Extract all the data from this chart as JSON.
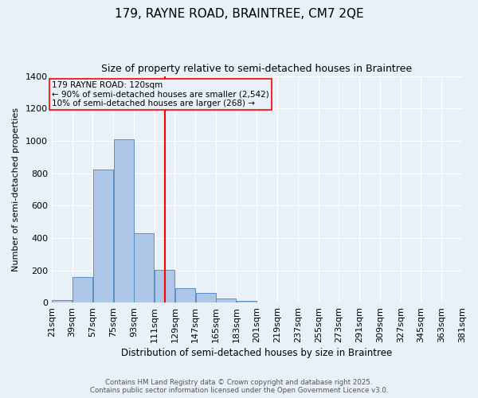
{
  "title1": "179, RAYNE ROAD, BRAINTREE, CM7 2QE",
  "title2": "Size of property relative to semi-detached houses in Braintree",
  "xlabel": "Distribution of semi-detached houses by size in Braintree",
  "ylabel": "Number of semi-detached properties",
  "bin_edges": [
    21,
    39,
    57,
    75,
    93,
    111,
    129,
    147,
    165,
    183,
    201,
    219,
    237,
    255,
    273,
    291,
    309,
    327,
    345,
    363,
    381
  ],
  "bar_heights": [
    15,
    160,
    820,
    1010,
    430,
    205,
    90,
    60,
    25,
    10,
    0,
    0,
    0,
    0,
    0,
    0,
    0,
    0,
    0,
    0
  ],
  "bar_color": "#aec6e8",
  "bar_edge_color": "#5a8fc0",
  "background_color": "#e8f0f8",
  "red_line_x": 120,
  "annotation_title": "179 RAYNE ROAD: 120sqm",
  "annotation_line1": "← 90% of semi-detached houses are smaller (2,542)",
  "annotation_line2": "10% of semi-detached houses are larger (268) →",
  "ylim": [
    0,
    1400
  ],
  "yticks": [
    0,
    200,
    400,
    600,
    800,
    1000,
    1200,
    1400
  ],
  "footnote1": "Contains HM Land Registry data © Crown copyright and database right 2025.",
  "footnote2": "Contains public sector information licensed under the Open Government Licence v3.0."
}
